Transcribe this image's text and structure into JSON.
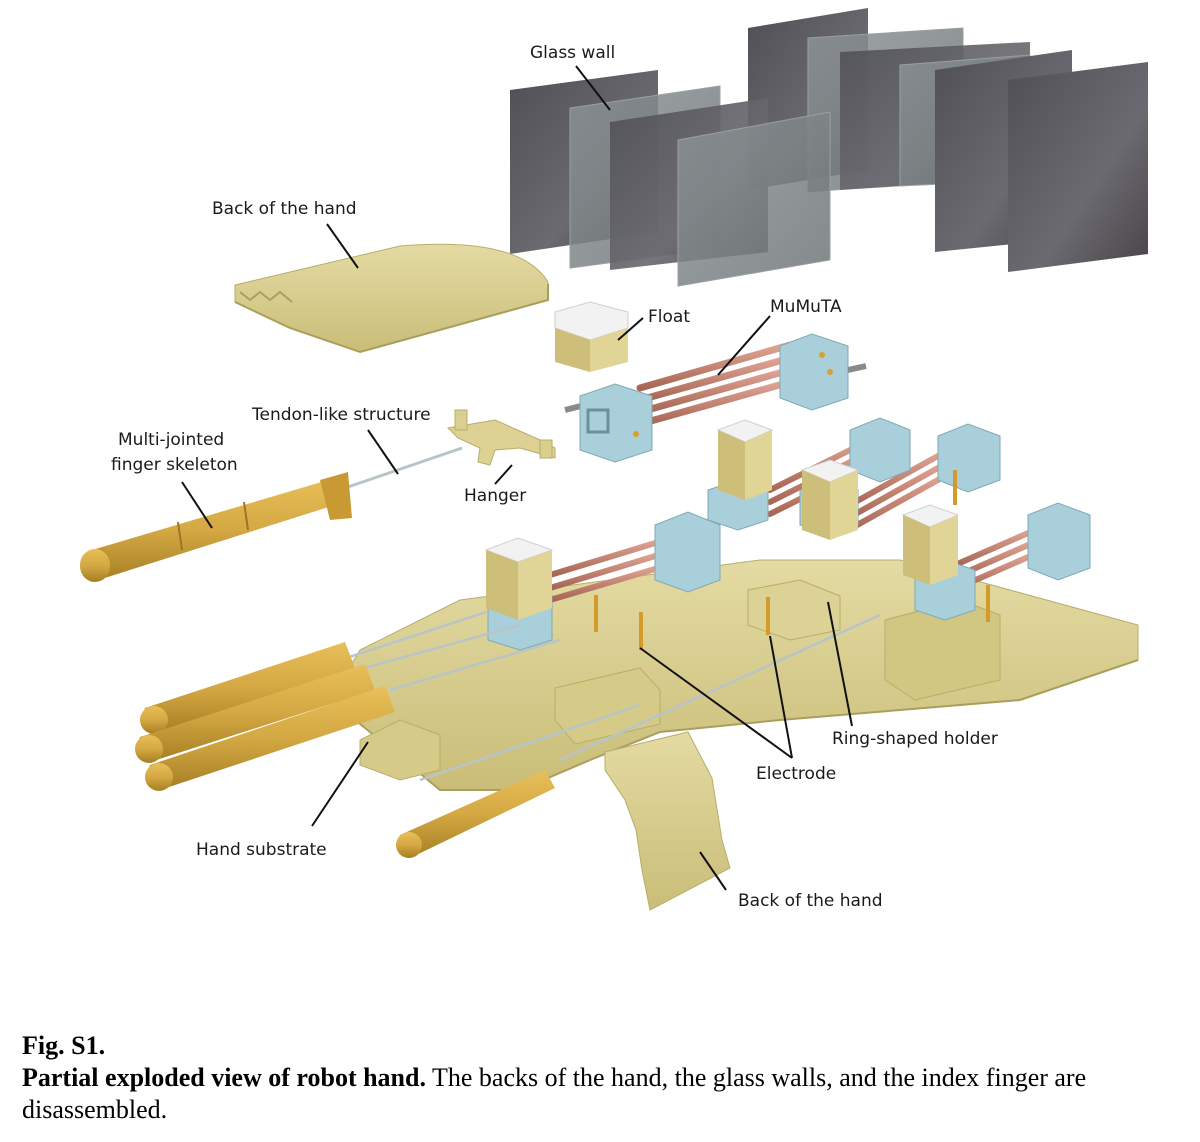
{
  "labels": {
    "glass_wall": "Glass wall",
    "back_of_hand_top": "Back of the hand",
    "float": "Float",
    "mumuta": "MuMuTA",
    "tendon": "Tendon-like structure",
    "finger_skeleton_1": "Multi-jointed",
    "finger_skeleton_2": "finger skeleton",
    "hanger": "Hanger",
    "ring_holder": "Ring-shaped holder",
    "electrode": "Electrode",
    "hand_substrate": "Hand substrate",
    "back_of_hand_bottom": "Back of the hand"
  },
  "caption": {
    "fig": "Fig. S1.",
    "title": "Partial exploded view of robot hand.",
    "text": " The backs of the hand, the glass walls, and the index finger are disassembled."
  },
  "colors": {
    "resin": "#d9cf8f",
    "resin_dark": "#b8ad6a",
    "finger": "#d4a843",
    "glass": "#5d5d62",
    "block": "#a9d0da",
    "tube": "#c98a7a",
    "float_top": "#f2f2f2"
  }
}
